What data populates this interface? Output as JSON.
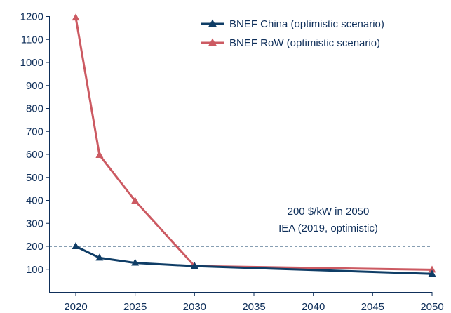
{
  "chart_data": {
    "type": "line",
    "title": "",
    "xlabel": "",
    "ylabel": "",
    "xlim": [
      2020,
      2050
    ],
    "ylim": [
      0,
      1200
    ],
    "x_ticks": [
      2020,
      2025,
      2030,
      2035,
      2040,
      2045,
      2050
    ],
    "x_tick_labels": [
      "2020",
      "2025",
      "2030",
      "2035",
      "2040",
      "2045",
      "2050"
    ],
    "y_ticks": [
      100,
      200,
      300,
      400,
      500,
      600,
      700,
      800,
      900,
      1000,
      1100,
      1200
    ],
    "y_tick_labels": [
      "100",
      "200",
      "300",
      "400",
      "500",
      "600",
      "700",
      "800",
      "900",
      "1000",
      "1100",
      "1200"
    ],
    "grid": false,
    "legend_position": "top-right",
    "series": [
      {
        "name": "BNEF China (optimistic scenario)",
        "color": "#0f3d66",
        "marker": "triangle",
        "points": [
          [
            2020,
            200
          ],
          [
            2022,
            150
          ],
          [
            2025,
            128
          ],
          [
            2030,
            114
          ],
          [
            2050,
            80
          ]
        ]
      },
      {
        "name": "BNEF RoW (optimistic scenario)",
        "color": "#cc5a62",
        "marker": "triangle",
        "points": [
          [
            2020,
            1195
          ],
          [
            2022,
            597
          ],
          [
            2025,
            398
          ],
          [
            2030,
            114
          ],
          [
            2050,
            98
          ]
        ]
      }
    ],
    "reference_line": {
      "y": 200,
      "color": "#0f3d66",
      "style": "dashed",
      "label_lines": [
        "200 $/kW in 2050",
        "IEA (2019, optimistic)"
      ]
    }
  }
}
